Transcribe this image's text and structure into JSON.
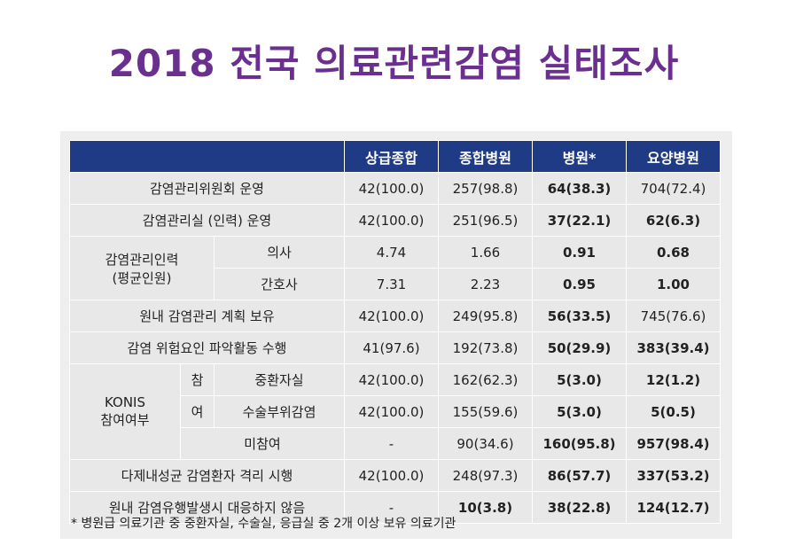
{
  "title": "2018 전국 의료관련감염 실태조사",
  "headers": [
    "",
    "상급종합",
    "종합병원",
    "병원*",
    "요양병원"
  ],
  "rows": {
    "committee": {
      "label": "감염관리위원회 운영",
      "v1": "42(100.0)",
      "v2": "257(98.8)",
      "v3": "64(38.3)",
      "v4": "704(72.4)"
    },
    "office": {
      "label": "감염관리실 (인력) 운영",
      "v1": "42(100.0)",
      "v2": "251(96.5)",
      "v3": "37(22.1)",
      "v4": "62(6.3)"
    },
    "staff": {
      "label_line1": "감염관리인력",
      "label_line2": "(평균인원)",
      "doctor": {
        "label": "의사",
        "v1": "4.74",
        "v2": "1.66",
        "v3": "0.91",
        "v4": "0.68"
      },
      "nurse": {
        "label": "간호사",
        "v1": "7.31",
        "v2": "2.23",
        "v3": "0.95",
        "v4": "1.00"
      }
    },
    "plan": {
      "label": "원내 감염관리 계획 보유",
      "v1": "42(100.0)",
      "v2": "249(95.8)",
      "v3": "56(33.5)",
      "v4": "745(76.6)"
    },
    "risk": {
      "label": "감염 위험요인 파악활동 수행",
      "v1": "41(97.6)",
      "v2": "192(73.8)",
      "v3": "50(29.9)",
      "v4": "383(39.4)"
    },
    "konis": {
      "label_line1": "KONIS",
      "label_line2": "참여여부",
      "participate_1": "참",
      "participate_2": "여",
      "icu": {
        "label": "중환자실",
        "v1": "42(100.0)",
        "v2": "162(62.3)",
        "v3": "5(3.0)",
        "v4": "12(1.2)"
      },
      "surgical": {
        "label": "수술부위감염",
        "v1": "42(100.0)",
        "v2": "155(59.6)",
        "v3": "5(3.0)",
        "v4": "5(0.5)"
      },
      "none": {
        "label": "미참여",
        "v1": "-",
        "v2": "90(34.6)",
        "v3": "160(95.8)",
        "v4": "957(98.4)"
      }
    },
    "isolation": {
      "label": "다제내성균 감염환자 격리 시행",
      "v1": "42(100.0)",
      "v2": "248(97.3)",
      "v3": "86(57.7)",
      "v4": "337(53.2)"
    },
    "outbreak": {
      "label": "원내 감염유행발생시 대응하지 않음",
      "v1": "-",
      "v2": "10(3.8)",
      "v3": "38(22.8)",
      "v4": "124(12.7)"
    }
  },
  "footnote": "* 병원급 의료기관 중 중환자실, 수술실, 응급실 중 2개 이상 보유 의료기관"
}
